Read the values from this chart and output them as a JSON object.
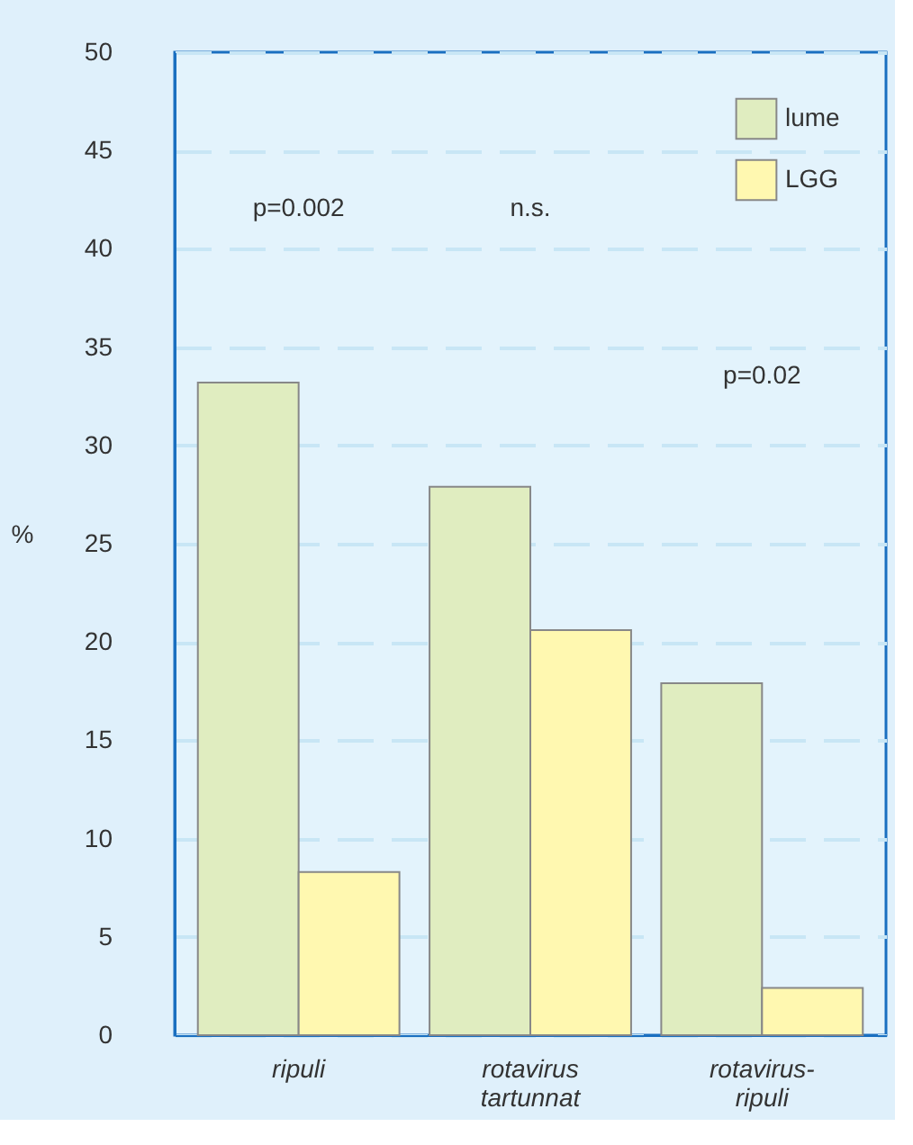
{
  "chart_data": {
    "type": "bar",
    "ylabel": "%",
    "categories": [
      "ripuli",
      "rotavirus\ntartunnat",
      "rotavirus-\nripuli"
    ],
    "series": [
      {
        "name": "lume",
        "color": "#e0edc0",
        "values": [
          33.2,
          27.9,
          17.9
        ]
      },
      {
        "name": "LGG",
        "color": "#fff8b0",
        "values": [
          8.3,
          20.6,
          2.4
        ]
      }
    ],
    "ylim": [
      0,
      50
    ],
    "yticks": [
      0,
      5,
      10,
      15,
      20,
      25,
      30,
      35,
      40,
      45,
      50
    ],
    "grid": "y",
    "legend": "top right",
    "annotations": [
      "p=0.002",
      "n.s.",
      "p=0.02"
    ]
  }
}
